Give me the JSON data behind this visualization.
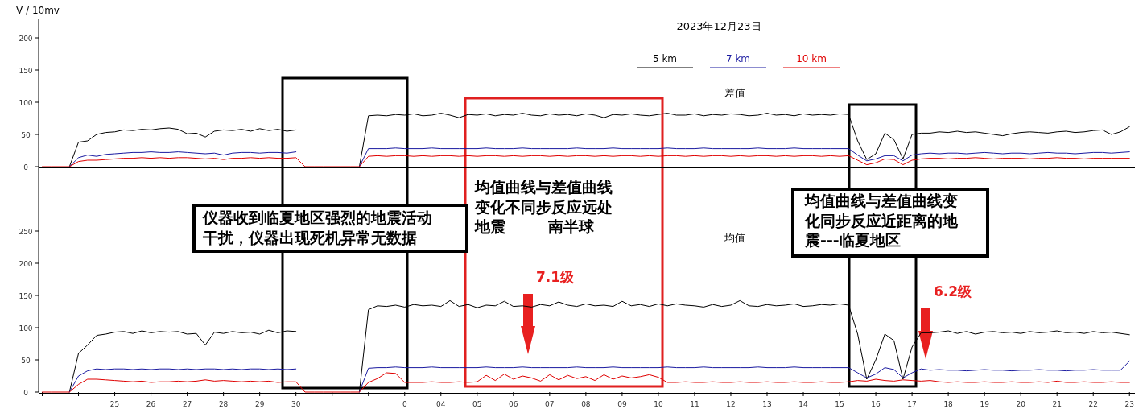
{
  "chart_data": [
    {
      "type": "line",
      "title": "2023年12月23日",
      "subtitle": "差值",
      "ylabel": "V / 10mv",
      "ylim": [
        0,
        230
      ],
      "yticks": [
        0,
        50,
        100,
        150,
        200
      ],
      "categories": [
        null,
        null,
        null,
        null,
        null,
        null,
        null,
        null,
        "25",
        null,
        null,
        null,
        "26",
        null,
        null,
        null,
        "27",
        null,
        null,
        null,
        "28",
        null,
        null,
        null,
        "29",
        null,
        null,
        null,
        "30",
        null,
        null,
        null,
        null,
        null,
        null,
        null,
        null,
        null,
        null,
        null,
        "0",
        null,
        null,
        null,
        "04",
        null,
        null,
        null,
        "05",
        null,
        null,
        null,
        "06",
        null,
        null,
        null,
        "07",
        null,
        null,
        null,
        "08",
        null,
        null,
        null,
        "09",
        null,
        null,
        null,
        "10",
        null,
        null,
        null,
        "11",
        null,
        null,
        null,
        "12",
        null,
        null,
        null,
        "13",
        null,
        null,
        null,
        "14",
        null,
        null,
        null,
        "15",
        null,
        null,
        null,
        "16",
        null,
        null,
        null,
        "17",
        null,
        null,
        null,
        "18",
        null,
        null,
        null,
        "19",
        null,
        null,
        null,
        "20",
        null,
        null,
        null,
        "21",
        null,
        null,
        null,
        "22",
        null,
        null,
        null,
        "23"
      ],
      "tick_labels": "y",
      "legend": "top",
      "grid": false,
      "series": [
        {
          "name": "5 km",
          "color": "#000000",
          "values": [
            null,
            null,
            null,
            0,
            38,
            40,
            50,
            53,
            54,
            57,
            56,
            58,
            57,
            59,
            60,
            58,
            51,
            52,
            46,
            55,
            57,
            56,
            58,
            55,
            59,
            56,
            58,
            55,
            57,
            null,
            null,
            null,
            null,
            null,
            null,
            0,
            79,
            80,
            79,
            81,
            80,
            82,
            79,
            80,
            83,
            80,
            76,
            81,
            80,
            82,
            79,
            81,
            80,
            83,
            80,
            79,
            82,
            80,
            81,
            79,
            82,
            80,
            76,
            81,
            80,
            82,
            80,
            79,
            81,
            83,
            80,
            80,
            82,
            79,
            81,
            80,
            82,
            81,
            79,
            80,
            83,
            80,
            81,
            79,
            82,
            80,
            81,
            80,
            82,
            81,
            40,
            11,
            20,
            52,
            42,
            12,
            50,
            52,
            52,
            54,
            53,
            55,
            53,
            54,
            52,
            50,
            48,
            51,
            53,
            54,
            53,
            52,
            54,
            55,
            53,
            54,
            56,
            57,
            50,
            54,
            62
          ]
        },
        {
          "name": "7 km",
          "color": "#1a1aa0",
          "values": [
            null,
            null,
            null,
            0,
            14,
            18,
            16,
            19,
            20,
            21,
            22,
            22,
            23,
            22,
            22,
            23,
            22,
            21,
            20,
            21,
            18,
            21,
            22,
            22,
            21,
            22,
            22,
            21,
            23,
            null,
            null,
            null,
            null,
            null,
            null,
            0,
            28,
            28,
            28,
            29,
            28,
            28,
            28,
            29,
            28,
            28,
            28,
            28,
            28,
            29,
            28,
            28,
            28,
            29,
            28,
            28,
            28,
            28,
            28,
            29,
            28,
            28,
            28,
            29,
            28,
            28,
            28,
            28,
            28,
            29,
            28,
            28,
            28,
            29,
            28,
            28,
            28,
            28,
            28,
            29,
            28,
            28,
            28,
            29,
            28,
            28,
            28,
            28,
            28,
            28,
            18,
            9,
            12,
            17,
            17,
            9,
            18,
            20,
            21,
            20,
            21,
            21,
            20,
            21,
            22,
            21,
            20,
            21,
            21,
            20,
            21,
            22,
            21,
            21,
            20,
            21,
            22,
            22,
            21,
            22,
            23
          ]
        },
        {
          "name": "10 km",
          "color": "#e00000",
          "values": [
            0,
            0,
            0,
            0,
            8,
            10,
            10,
            11,
            12,
            13,
            13,
            14,
            13,
            14,
            13,
            14,
            14,
            13,
            12,
            13,
            11,
            13,
            13,
            14,
            13,
            14,
            13,
            13,
            14,
            0,
            0,
            0,
            0,
            0,
            0,
            0,
            16,
            17,
            16,
            17,
            17,
            16,
            17,
            16,
            17,
            17,
            16,
            17,
            16,
            17,
            17,
            16,
            17,
            16,
            17,
            17,
            16,
            17,
            16,
            17,
            17,
            16,
            17,
            16,
            17,
            17,
            16,
            17,
            16,
            17,
            17,
            16,
            17,
            16,
            17,
            17,
            16,
            17,
            16,
            17,
            17,
            16,
            17,
            16,
            17,
            17,
            16,
            17,
            16,
            17,
            10,
            3,
            6,
            12,
            11,
            3,
            10,
            12,
            13,
            13,
            12,
            13,
            13,
            14,
            13,
            12,
            13,
            13,
            13,
            12,
            13,
            13,
            14,
            13,
            13,
            12,
            13,
            13,
            13,
            13,
            13
          ]
        }
      ]
    },
    {
      "type": "line",
      "subtitle": "均值",
      "ylim": [
        0,
        350
      ],
      "yticks": [
        0,
        50,
        100,
        150,
        200,
        250
      ],
      "categories": [
        null,
        null,
        null,
        null,
        null,
        null,
        null,
        null,
        "25",
        null,
        null,
        null,
        "26",
        null,
        null,
        null,
        "27",
        null,
        null,
        null,
        "28",
        null,
        null,
        null,
        "29",
        null,
        null,
        null,
        "30",
        null,
        null,
        null,
        null,
        null,
        null,
        null,
        null,
        null,
        null,
        null,
        "0",
        null,
        null,
        null,
        "04",
        null,
        null,
        null,
        "05",
        null,
        null,
        null,
        "06",
        null,
        null,
        null,
        "07",
        null,
        null,
        null,
        "08",
        null,
        null,
        null,
        "09",
        null,
        null,
        null,
        "10",
        null,
        null,
        null,
        "11",
        null,
        null,
        null,
        "12",
        null,
        null,
        null,
        "13",
        null,
        null,
        null,
        "14",
        null,
        null,
        null,
        "15",
        null,
        null,
        null,
        "16",
        null,
        null,
        null,
        "17",
        null,
        null,
        null,
        "18",
        null,
        null,
        null,
        "19",
        null,
        null,
        null,
        "20",
        null,
        null,
        null,
        "21",
        null,
        null,
        null,
        "22",
        null,
        null,
        null,
        "23"
      ],
      "grid": false,
      "series": [
        {
          "color": "#000000",
          "values": [
            null,
            null,
            null,
            0,
            60,
            73,
            88,
            90,
            93,
            94,
            91,
            95,
            92,
            94,
            93,
            94,
            90,
            91,
            73,
            93,
            91,
            94,
            92,
            93,
            90,
            96,
            92,
            95,
            94,
            null,
            null,
            null,
            null,
            null,
            null,
            0,
            128,
            134,
            133,
            135,
            132,
            136,
            134,
            135,
            133,
            142,
            133,
            136,
            131,
            135,
            134,
            141,
            133,
            134,
            132,
            136,
            134,
            140,
            135,
            133,
            137,
            134,
            135,
            133,
            141,
            134,
            136,
            133,
            137,
            134,
            137,
            135,
            134,
            132,
            136,
            133,
            135,
            142,
            134,
            133,
            136,
            134,
            135,
            137,
            133,
            134,
            136,
            135,
            137,
            135,
            90,
            20,
            50,
            90,
            80,
            20,
            70,
            92,
            92,
            93,
            95,
            91,
            94,
            90,
            93,
            94,
            92,
            93,
            91,
            94,
            92,
            93,
            95,
            92,
            93,
            91,
            94,
            92,
            93,
            91,
            89
          ]
        },
        {
          "color": "#1a1aa0",
          "values": [
            null,
            null,
            null,
            0,
            25,
            33,
            36,
            35,
            36,
            36,
            35,
            36,
            35,
            36,
            36,
            35,
            36,
            35,
            36,
            36,
            35,
            36,
            35,
            36,
            36,
            35,
            36,
            35,
            36,
            null,
            null,
            null,
            null,
            null,
            null,
            0,
            37,
            38,
            38,
            39,
            38,
            38,
            38,
            39,
            38,
            38,
            38,
            38,
            38,
            39,
            38,
            38,
            38,
            39,
            38,
            38,
            38,
            38,
            38,
            39,
            38,
            38,
            38,
            39,
            38,
            38,
            38,
            38,
            38,
            39,
            38,
            38,
            38,
            39,
            38,
            38,
            38,
            38,
            38,
            39,
            38,
            38,
            38,
            39,
            38,
            38,
            38,
            38,
            38,
            38,
            30,
            22,
            28,
            38,
            35,
            22,
            30,
            36,
            34,
            35,
            34,
            34,
            33,
            34,
            35,
            34,
            34,
            33,
            34,
            34,
            35,
            34,
            34,
            33,
            34,
            34,
            35,
            34,
            34,
            34,
            48
          ]
        },
        {
          "color": "#e00000",
          "values": [
            0,
            0,
            0,
            0,
            12,
            20,
            20,
            19,
            18,
            17,
            16,
            17,
            15,
            16,
            16,
            17,
            16,
            17,
            19,
            17,
            18,
            17,
            16,
            17,
            16,
            17,
            15,
            16,
            16,
            0,
            0,
            0,
            0,
            0,
            0,
            0,
            15,
            21,
            30,
            29,
            15,
            15,
            15,
            16,
            15,
            15,
            16,
            15,
            16,
            26,
            18,
            28,
            20,
            25,
            22,
            17,
            27,
            19,
            26,
            21,
            24,
            18,
            27,
            20,
            25,
            22,
            24,
            27,
            23,
            15,
            15,
            16,
            15,
            15,
            16,
            15,
            15,
            16,
            15,
            15,
            16,
            15,
            15,
            16,
            15,
            15,
            16,
            15,
            15,
            16,
            18,
            17,
            20,
            18,
            17,
            19,
            18,
            17,
            18,
            16,
            15,
            16,
            15,
            15,
            16,
            15,
            15,
            16,
            15,
            15,
            16,
            15,
            17,
            15,
            15,
            16,
            15,
            15,
            16,
            15,
            15
          ]
        }
      ],
      "annotations": [
        "仪器收到临夏地区强烈的地震活动干扰，仪器出现死机异常无数据",
        "均值曲线与差值曲线变化不同步反应远处地震        南半球",
        "均值曲线与差值曲线变化同步反应近距离的地震---临夏地区",
        "7.1级",
        "6.2级"
      ]
    }
  ]
}
